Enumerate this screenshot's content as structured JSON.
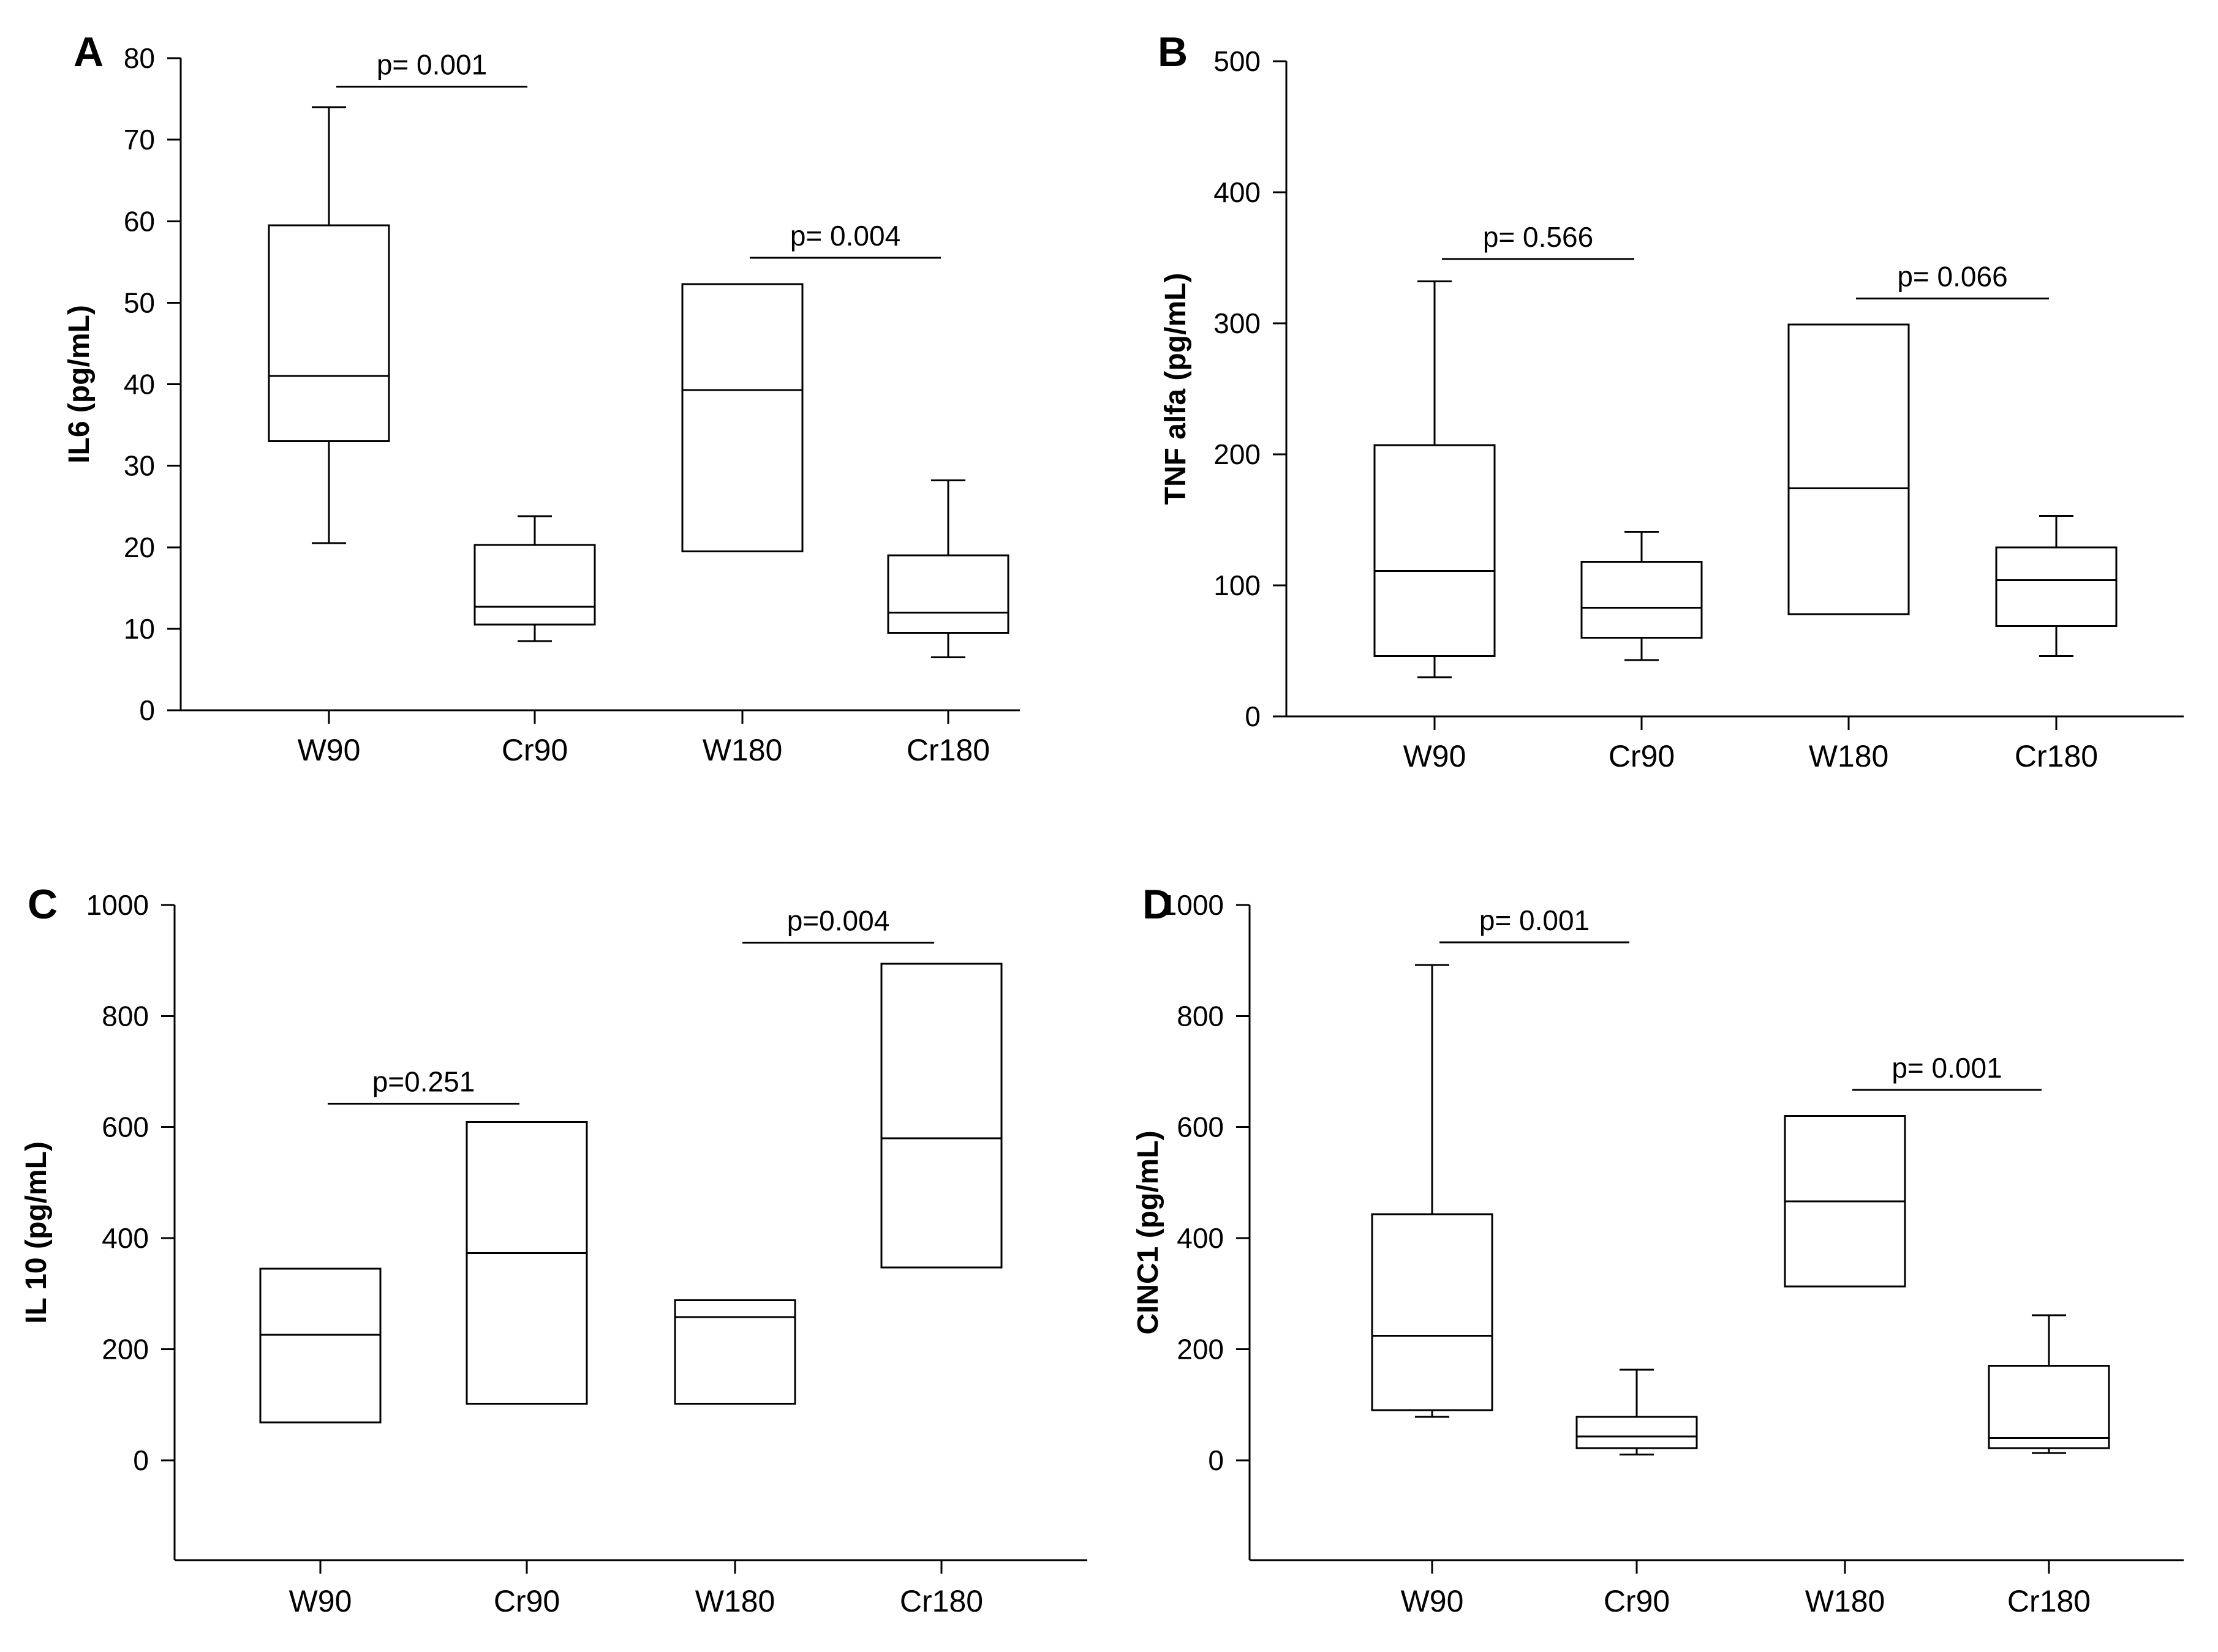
{
  "chart_data": [
    {
      "type": "box",
      "panel": "A",
      "ylabel": "IL6 (pg/mL)",
      "ylim": [
        0,
        80
      ],
      "yticks": [
        0,
        10,
        20,
        30,
        40,
        50,
        60,
        70,
        80
      ],
      "categories": [
        "W90",
        "Cr90",
        "W180",
        "Cr180"
      ],
      "boxes": [
        {
          "category": "W90",
          "whisker_low": 20.5,
          "q1": 33,
          "median": 41,
          "q3": 59.5,
          "whisker_high": 74
        },
        {
          "category": "Cr90",
          "whisker_low": 8.5,
          "q1": 10.5,
          "median": 12.7,
          "q3": 20.3,
          "whisker_high": 23.8
        },
        {
          "category": "W180",
          "whisker_low": 19.5,
          "q1": 19.5,
          "median": 39.3,
          "q3": 52.3,
          "whisker_high": 52.3
        },
        {
          "category": "Cr180",
          "whisker_low": 6.5,
          "q1": 9.5,
          "median": 12,
          "q3": 19,
          "whisker_high": 28.2
        }
      ],
      "comparisons": [
        {
          "label": "p= 0.001",
          "from": "W90",
          "to": "Cr90",
          "at": 76.5
        },
        {
          "label": "p= 0.004",
          "from": "W180",
          "to": "Cr180",
          "at": 55.5
        }
      ]
    },
    {
      "type": "box",
      "panel": "B",
      "ylabel": "TNF alfa (pg/mL)",
      "ylim": [
        0,
        500
      ],
      "yticks": [
        0,
        100,
        200,
        300,
        400,
        500
      ],
      "categories": [
        "W90",
        "Cr90",
        "W180",
        "Cr180"
      ],
      "boxes": [
        {
          "category": "W90",
          "whisker_low": 30,
          "q1": 46,
          "median": 111,
          "q3": 207,
          "whisker_high": 332
        },
        {
          "category": "Cr90",
          "whisker_low": 43,
          "q1": 60,
          "median": 83,
          "q3": 118,
          "whisker_high": 141
        },
        {
          "category": "W180",
          "whisker_low": 78,
          "q1": 78,
          "median": 174,
          "q3": 299,
          "whisker_high": 299
        },
        {
          "category": "Cr180",
          "whisker_low": 46,
          "q1": 69,
          "median": 104,
          "q3": 129,
          "whisker_high": 153
        }
      ],
      "comparisons": [
        {
          "label": "p= 0.566",
          "from": "W90",
          "to": "Cr90",
          "at": 349
        },
        {
          "label": "p= 0.066",
          "from": "W180",
          "to": "Cr180",
          "at": 319
        }
      ]
    },
    {
      "type": "box",
      "panel": "C",
      "ylabel": "IL 10 (pg/mL)",
      "ylim": [
        -180,
        1000
      ],
      "yticks": [
        0,
        200,
        400,
        600,
        800,
        1000
      ],
      "categories": [
        "W90",
        "Cr90",
        "W180",
        "Cr180"
      ],
      "boxes": [
        {
          "category": "W90",
          "whisker_low": 68,
          "q1": 68,
          "median": 226,
          "q3": 345,
          "whisker_high": 345
        },
        {
          "category": "Cr90",
          "whisker_low": 102,
          "q1": 102,
          "median": 373,
          "q3": 609,
          "whisker_high": 609
        },
        {
          "category": "W180",
          "whisker_low": 102,
          "q1": 102,
          "median": 258,
          "q3": 288,
          "whisker_high": 288
        },
        {
          "category": "Cr180",
          "whisker_low": 347,
          "q1": 347,
          "median": 580,
          "q3": 894,
          "whisker_high": 894
        }
      ],
      "comparisons": [
        {
          "label": "p=0.251",
          "from": "W90",
          "to": "Cr90",
          "at": 642
        },
        {
          "label": "p=0.004",
          "from": "W180",
          "to": "Cr180",
          "at": 932
        }
      ]
    },
    {
      "type": "box",
      "panel": "D",
      "ylabel": "CINC1 (pg/mL)",
      "ylim": [
        -180,
        1000
      ],
      "yticks": [
        0,
        200,
        400,
        600,
        800,
        1000
      ],
      "categories": [
        "W90",
        "Cr90",
        "W180",
        "Cr180"
      ],
      "boxes": [
        {
          "category": "W90",
          "whisker_low": 78,
          "q1": 90,
          "median": 224,
          "q3": 443,
          "whisker_high": 892
        },
        {
          "category": "Cr90",
          "whisker_low": 10,
          "q1": 22,
          "median": 43,
          "q3": 78,
          "whisker_high": 163
        },
        {
          "category": "W180",
          "whisker_low": 313,
          "q1": 313,
          "median": 466,
          "q3": 620,
          "whisker_high": 620
        },
        {
          "category": "Cr180",
          "whisker_low": 13,
          "q1": 22,
          "median": 40,
          "q3": 170,
          "whisker_high": 261
        }
      ],
      "comparisons": [
        {
          "label": "p= 0.001",
          "from": "W90",
          "to": "Cr90",
          "at": 933
        },
        {
          "label": "p= 0.001",
          "from": "W180",
          "to": "Cr180",
          "at": 667
        }
      ]
    }
  ]
}
